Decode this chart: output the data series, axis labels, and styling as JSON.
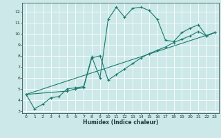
{
  "xlabel": "Humidex (Indice chaleur)",
  "ylabel": "",
  "bg_color": "#cce8e8",
  "line_color": "#1a7a6e",
  "grid_color": "#ffffff",
  "xlim": [
    -0.5,
    23.5
  ],
  "ylim": [
    2.8,
    12.8
  ],
  "xticks": [
    0,
    1,
    2,
    3,
    4,
    5,
    6,
    7,
    8,
    9,
    10,
    11,
    12,
    13,
    14,
    15,
    16,
    17,
    18,
    19,
    20,
    21,
    22,
    23
  ],
  "yticks": [
    3,
    4,
    5,
    6,
    7,
    8,
    9,
    10,
    11,
    12
  ],
  "line1_x": [
    0,
    1,
    2,
    3,
    4,
    5,
    6,
    7,
    8,
    9,
    10,
    11,
    12,
    13,
    14,
    15,
    16,
    17,
    18,
    19,
    20,
    21,
    22,
    23
  ],
  "line1_y": [
    4.5,
    3.2,
    3.6,
    4.2,
    4.3,
    5.0,
    5.1,
    5.2,
    7.9,
    6.0,
    11.3,
    12.4,
    11.5,
    12.3,
    12.4,
    12.1,
    11.3,
    9.4,
    9.3,
    10.1,
    10.5,
    10.8,
    9.8,
    10.1
  ],
  "line2_x": [
    0,
    5,
    6,
    7,
    8,
    9,
    10,
    11,
    12,
    13,
    14,
    15,
    16,
    17,
    18,
    19,
    20,
    21,
    22,
    23
  ],
  "line2_y": [
    4.5,
    4.8,
    5.0,
    5.1,
    7.8,
    8.0,
    5.8,
    6.3,
    6.8,
    7.3,
    7.8,
    8.2,
    8.5,
    8.8,
    9.2,
    9.5,
    9.8,
    10.2,
    9.8,
    10.1
  ],
  "line3_x": [
    0,
    23
  ],
  "line3_y": [
    4.5,
    10.1
  ]
}
